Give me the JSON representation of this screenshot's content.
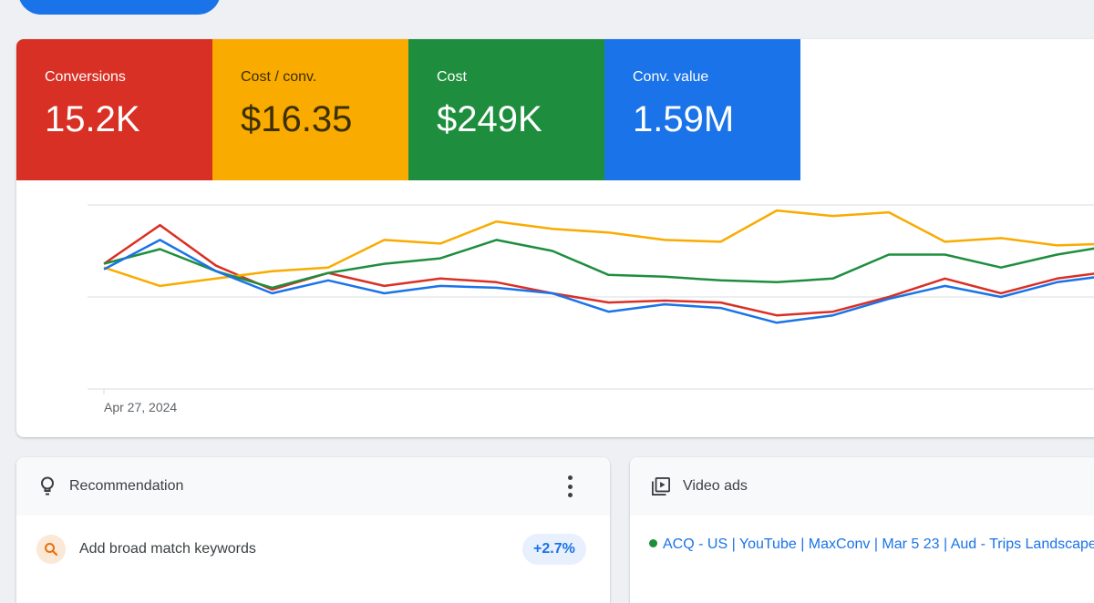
{
  "metrics": [
    {
      "label": "Conversions",
      "value": "15.2K",
      "color": "#d93025"
    },
    {
      "label": "Cost / conv.",
      "value": "$16.35",
      "color": "#f9ab00"
    },
    {
      "label": "Cost",
      "value": "$249K",
      "color": "#1e8e3e"
    },
    {
      "label": "Conv. value",
      "value": "1.59M",
      "color": "#1a73e8"
    }
  ],
  "chart": {
    "x_tick_label": "Apr 27, 2024"
  },
  "chart_data": {
    "type": "line",
    "xlabel": "",
    "ylabel": "",
    "ylim": [
      0,
      100
    ],
    "grid": true,
    "legend": "none",
    "x_first_tick": "Apr 27, 2024",
    "series": [
      {
        "color": "#d93025",
        "values": [
          68,
          89,
          67,
          54,
          63,
          56,
          60,
          58,
          52,
          47,
          48,
          47,
          40,
          42,
          50,
          60,
          52,
          60,
          64
        ]
      },
      {
        "color": "#f9ab00",
        "values": [
          66,
          56,
          60,
          64,
          66,
          81,
          79,
          91,
          87,
          85,
          81,
          80,
          97,
          94,
          96,
          80,
          82,
          78,
          79
        ]
      },
      {
        "color": "#1e8e3e",
        "values": [
          68,
          76,
          64,
          55,
          63,
          68,
          71,
          81,
          75,
          62,
          61,
          59,
          58,
          60,
          73,
          73,
          66,
          73,
          78
        ]
      },
      {
        "color": "#1a73e8",
        "values": [
          65,
          81,
          64,
          52,
          59,
          52,
          56,
          55,
          52,
          42,
          46,
          44,
          36,
          40,
          49,
          56,
          50,
          58,
          62
        ]
      }
    ]
  },
  "recommendation_card": {
    "title": "Recommendation",
    "item_label": "Add broad match keywords",
    "uplift": "+2.7%"
  },
  "video_card": {
    "title": "Video ads",
    "campaign": "ACQ - US | YouTube | MaxConv | Mar 5 23 | Aud - Trips Landscape",
    "status_color": "#1e8e3e"
  }
}
